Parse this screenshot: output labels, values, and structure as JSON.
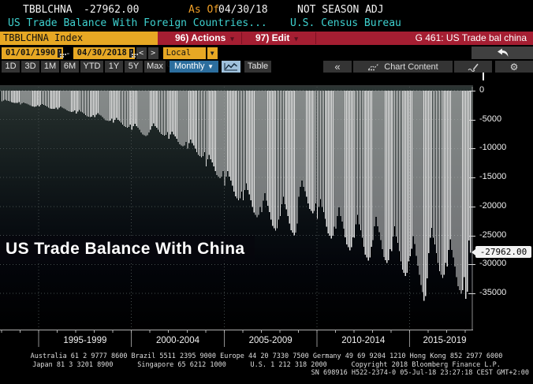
{
  "header": {
    "ticker": "TBBLCHNA",
    "last_value": "-27962.00",
    "as_of_label": "As Of",
    "as_of_date": "04/30/18",
    "adjustment": "NOT SEASON ADJ",
    "description": "US Trade Balance With Foreign Countries...",
    "source": "U.S. Census Bureau"
  },
  "command_bar": {
    "security": "TBBLCHNA Index",
    "actions_label": "96) Actions",
    "edit_label": "97) Edit",
    "caret": "▾",
    "screen_title": "G 461: US Trade bal china"
  },
  "range_bar": {
    "start_date": "01/01/1990",
    "separator": "-",
    "end_date": "04/30/2018",
    "back": "<",
    "forward": ">",
    "currency": "Local CCY",
    "currency_caret": "▼"
  },
  "toolbar": {
    "periods": [
      "1D",
      "3D",
      "1M",
      "6M",
      "YTD",
      "1Y",
      "5Y",
      "Max"
    ],
    "frequency": "Monthly",
    "frequency_caret": "▼",
    "table_label": "Table",
    "collapse_label": "«",
    "chart_content_label": "Chart Content"
  },
  "chart": {
    "title": "US Trade Balance With China",
    "last_value_tag": "-27962.00"
  },
  "chart_data": {
    "type": "bar",
    "title": "US Trade Balance With China",
    "series_name": "TBBLCHNA Index — US Trade Balance With China (Not Seasonally Adjusted, USD millions)",
    "frequency": "Monthly",
    "visible_start": "1993-01",
    "visible_end": "2018-04",
    "last_value": -27962.0,
    "bar_color": "#e2e2e2",
    "grid": true,
    "y_ticks": [
      0,
      -5000,
      -10000,
      -15000,
      -20000,
      -25000,
      -30000,
      -35000
    ],
    "ylim": [
      -41000,
      950
    ],
    "x_dividers": [
      "1995-01",
      "2000-01",
      "2005-01",
      "2010-01",
      "2015-01"
    ],
    "x_section_labels": [
      "1995-1999",
      "2000-2004",
      "2005-2009",
      "2010-2014",
      "2015-2019"
    ],
    "values": [
      -1840,
      -1670,
      -1560,
      -1670,
      -1750,
      -1840,
      -1960,
      -2050,
      -2090,
      -2130,
      -2090,
      -1960,
      -2400,
      -2170,
      -2030,
      -2170,
      -2270,
      -2400,
      -2540,
      -2670,
      -2720,
      -2770,
      -2720,
      -2540,
      -2740,
      -2480,
      -2310,
      -2480,
      -2590,
      -2740,
      -2900,
      -3050,
      -3100,
      -3160,
      -3100,
      -2900,
      -3200,
      -2900,
      -2710,
      -2900,
      -3040,
      -3200,
      -3400,
      -3560,
      -3630,
      -3700,
      -3630,
      -3400,
      -3980,
      -3610,
      -3360,
      -3610,
      -3770,
      -3980,
      -4220,
      -4430,
      -4510,
      -4590,
      -4510,
      -4220,
      -4560,
      -4140,
      -3850,
      -4140,
      -4320,
      -4560,
      -4840,
      -5080,
      -5170,
      -5260,
      -5170,
      -4840,
      -5530,
      -5020,
      -4670,
      -5020,
      -5240,
      -5530,
      -5870,
      -6160,
      -6270,
      -6380,
      -6270,
      -5870,
      -6770,
      -6140,
      -5720,
      -6140,
      -6420,
      -6770,
      -7190,
      -7540,
      -7680,
      -7820,
      -7680,
      -7190,
      -6720,
      -6100,
      -5680,
      -6100,
      -6380,
      -6720,
      -7140,
      -7480,
      -7620,
      -7760,
      -7620,
      -7140,
      -8340,
      -7570,
      -7050,
      -7570,
      -7910,
      -8340,
      -8860,
      -9290,
      -9460,
      -9630,
      -9460,
      -8860,
      -9990,
      -9060,
      -8450,
      -9060,
      -9480,
      -9990,
      -10610,
      -11120,
      -11330,
      -11540,
      -11330,
      -10610,
      -13100,
      -11880,
      -11070,
      -11880,
      -12420,
      -13100,
      -13910,
      -14580,
      -14850,
      -15120,
      -14850,
      -13910,
      -16390,
      -14870,
      -13860,
      -14870,
      -15550,
      -16390,
      -17410,
      -18250,
      -18590,
      -18930,
      -18590,
      -17410,
      -18920,
      -17160,
      -15990,
      -17160,
      -17940,
      -18920,
      -20090,
      -21060,
      -21450,
      -21840,
      -21450,
      -20090,
      -20950,
      -19010,
      -17710,
      -19010,
      -19870,
      -20950,
      -22250,
      -23330,
      -23760,
      -24190,
      -23760,
      -22250,
      -21630,
      -19620,
      -18290,
      -19620,
      -20520,
      -21630,
      -22970,
      -24080,
      -24530,
      -24980,
      -24530,
      -22970,
      -18330,
      -16630,
      -15500,
      -16630,
      -17390,
      -18330,
      -19470,
      -20410,
      -20790,
      -21170,
      -20790,
      -19470,
      -22120,
      -20060,
      -18700,
      -20060,
      -20980,
      -22120,
      -23480,
      -24620,
      -25080,
      -25540,
      -25080,
      -23480,
      -23860,
      -21650,
      -20170,
      -21650,
      -22630,
      -23860,
      -25340,
      -26570,
      -27060,
      -27550,
      -27060,
      -25340,
      -25410,
      -23060,
      -21480,
      -23060,
      -24100,
      -25410,
      -26990,
      -28300,
      -28820,
      -29340,
      -28820,
      -26990,
      -25800,
      -23410,
      -21810,
      -23410,
      -24470,
      -25800,
      -27400,
      -28730,
      -29260,
      -29790,
      -29260,
      -27400,
      -27740,
      -25170,
      -23450,
      -25170,
      -26310,
      -27740,
      -29460,
      -30890,
      -31460,
      -32030,
      -31460,
      -29460,
      -28600,
      -27300,
      -25100,
      -26500,
      -28500,
      -30200,
      -31800,
      -33600,
      -34800,
      -36300,
      -35500,
      -32400,
      -28030,
      -25430,
      -23700,
      -25430,
      -26590,
      -28030,
      -29770,
      -31210,
      -31790,
      -32370,
      -31790,
      -29770,
      -30360,
      -27540,
      -25670,
      -27540,
      -28800,
      -30360,
      -32240,
      -33800,
      -34430,
      -35060,
      -34430,
      -32240,
      -35950,
      -34700,
      -25900,
      -27962
    ]
  },
  "footer": {
    "line1": "Australia 61 2 9777 8600 Brazil 5511 2395 9000 Europe 44 20 7330 7500 Germany 49 69 9204 1210 Hong Kong 852 2977 6000",
    "line2": "Japan 81 3 3201 8900      Singapore 65 6212 1000      U.S. 1 212 318 2000      Copyright 2018 Bloomberg Finance L.P.",
    "line3": "SN 698916 H522-2374-0 05-Jul-18 23:27:18 CEST GMT+2:00"
  }
}
